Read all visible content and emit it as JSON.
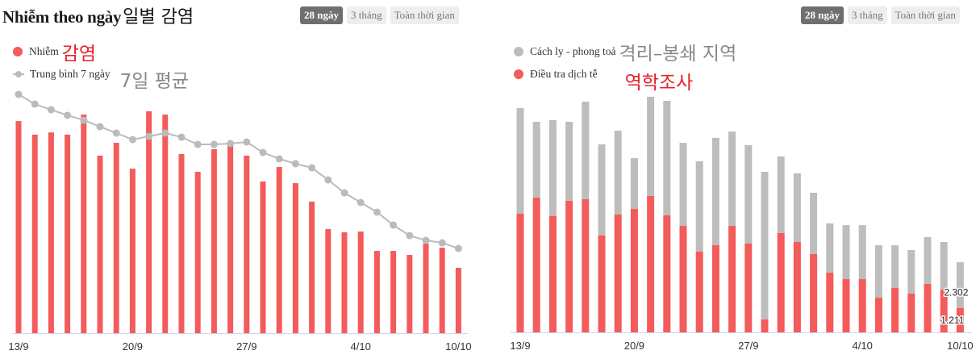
{
  "left": {
    "title_vi": "Nhiễm theo ngày",
    "title_ko": "일별  감염",
    "range_buttons": [
      {
        "label": "28 ngày",
        "active": true
      },
      {
        "label": "3 tháng",
        "active": false
      },
      {
        "label": "Toàn thời gian",
        "active": false
      }
    ],
    "legend": [
      {
        "label": "Nhiễm",
        "annotation": "감염",
        "annotation_color": "#e8202a",
        "marker": "dot",
        "color": "#f45b5b"
      },
      {
        "label": "Trung bình 7 ngày",
        "annotation": "7일  평균",
        "annotation_color": "#888888",
        "marker": "line",
        "color": "#bbbbbb"
      }
    ]
  },
  "right": {
    "range_buttons": [
      {
        "label": "28 ngày",
        "active": true
      },
      {
        "label": "3 tháng",
        "active": false
      },
      {
        "label": "Toàn thời gian",
        "active": false
      }
    ],
    "legend": [
      {
        "label": "Cách ly - phong toả",
        "annotation": "격리–봉쇄  지역",
        "annotation_color": "#888888",
        "marker": "dot",
        "color": "#bdbdbd"
      },
      {
        "label": "Điều tra dịch tễ",
        "annotation": "역학조사",
        "annotation_color": "#e8202a",
        "marker": "dot",
        "color": "#f45b5b"
      }
    ]
  },
  "colors": {
    "red": "#f45b5b",
    "gray": "#bdbdbd",
    "line": "#bbbbbb",
    "axis": "#ccd6eb"
  },
  "chart_data": [
    {
      "type": "bar",
      "title": "Nhiễm theo ngày",
      "xlabel": "",
      "ylabel": "",
      "x_tick_labels": [
        "13/9",
        "20/9",
        "27/9",
        "4/10",
        "10/10"
      ],
      "x_tick_index": [
        0,
        7,
        14,
        21,
        27
      ],
      "categories": [
        "13/9",
        "14/9",
        "15/9",
        "16/9",
        "17/9",
        "18/9",
        "19/9",
        "20/9",
        "21/9",
        "22/9",
        "23/9",
        "24/9",
        "25/9",
        "26/9",
        "27/9",
        "28/9",
        "29/9",
        "30/9",
        "1/10",
        "2/10",
        "3/10",
        "4/10",
        "5/10",
        "6/10",
        "7/10",
        "8/10",
        "9/10",
        "10/10"
      ],
      "series": [
        {
          "name": "Nhiễm",
          "type": "bar",
          "color": "#f45b5b",
          "values": [
            11410,
            10680,
            10800,
            10680,
            11760,
            9550,
            10240,
            8850,
            11935,
            11760,
            9635,
            8680,
            9895,
            10200,
            9550,
            8160,
            8940,
            8070,
            7075,
            5600,
            5425,
            5470,
            4425,
            4425,
            4210,
            4820,
            4600,
            3515
          ]
        },
        {
          "name": "Trung bình 7 ngày",
          "type": "line",
          "color": "#bbbbbb",
          "values": [
            12845,
            12325,
            12020,
            11720,
            11460,
            11110,
            10765,
            10415,
            10590,
            10765,
            10545,
            10155,
            10155,
            10200,
            10285,
            9720,
            9375,
            9115,
            8895,
            8245,
            7550,
            7030,
            6510,
            5815,
            5250,
            4990,
            4860,
            4555
          ]
        }
      ],
      "ylim": [
        0,
        13500
      ],
      "grid": false,
      "legend_position": "top-left"
    },
    {
      "type": "bar",
      "stacked": true,
      "title": "",
      "xlabel": "",
      "ylabel": "",
      "x_tick_labels": [
        "13/9",
        "20/9",
        "27/9",
        "4/10",
        "10/10"
      ],
      "x_tick_index": [
        0,
        7,
        14,
        21,
        27
      ],
      "categories": [
        "13/9",
        "14/9",
        "15/9",
        "16/9",
        "17/9",
        "18/9",
        "19/9",
        "20/9",
        "21/9",
        "22/9",
        "23/9",
        "24/9",
        "25/9",
        "26/9",
        "27/9",
        "28/9",
        "29/9",
        "30/9",
        "1/10",
        "2/10",
        "3/10",
        "4/10",
        "5/10",
        "6/10",
        "7/10",
        "8/10",
        "9/10",
        "10/10"
      ],
      "series": [
        {
          "name": "Điều tra dịch tễ",
          "color": "#f45b5b",
          "values": [
            5940,
            6745,
            5820,
            6585,
            6665,
            4850,
            5900,
            6180,
            6830,
            5860,
            5330,
            4040,
            4365,
            5330,
            4445,
            645,
            4970,
            4525,
            3920,
            2990,
            2665,
            2665,
            1735,
            2220,
            1940,
            2425,
            2140,
            1211
          ]
        },
        {
          "name": "Cách ly - phong toả",
          "color": "#bdbdbd",
          "values": [
            5290,
            3800,
            4810,
            3960,
            4890,
            4565,
            4200,
            2545,
            4970,
            5735,
            4160,
            4525,
            5375,
            4725,
            4930,
            7395,
            3840,
            3435,
            3070,
            2465,
            2705,
            2705,
            2625,
            2140,
            2180,
            2345,
            2385,
            2302
          ]
        }
      ],
      "annotations": [
        {
          "text": "2.302",
          "series": "Cách ly - phong toả",
          "index": 27
        },
        {
          "text": "1.211",
          "series": "Điều tra dịch tễ",
          "index": 27
        }
      ],
      "ylim": [
        0,
        12000
      ],
      "grid": false,
      "legend_position": "top-left"
    }
  ]
}
